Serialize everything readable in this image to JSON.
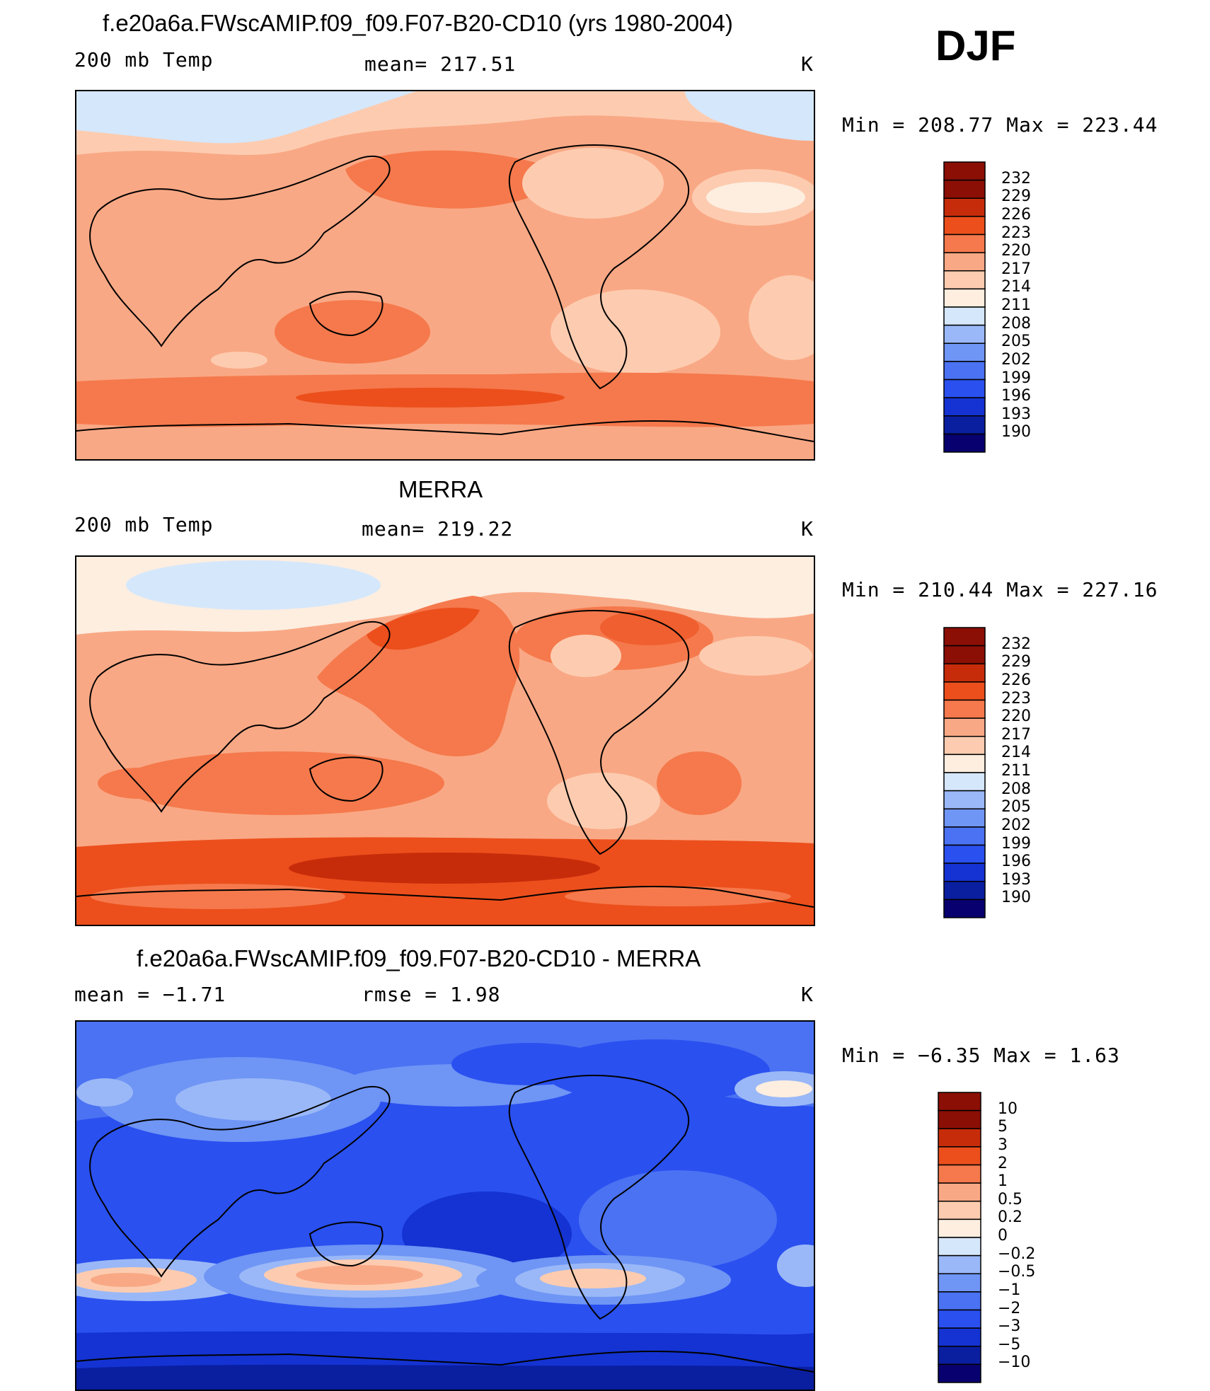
{
  "season": "DJF",
  "colors": {
    "abs_scale": [
      "#08006e",
      "#0a1ea0",
      "#1433d2",
      "#2a50f0",
      "#4a72f2",
      "#6f95f5",
      "#9ab8f7",
      "#d5e7fb",
      "#fdeee0",
      "#fdccb0",
      "#f9a885",
      "#f5794c",
      "#ec4f1c",
      "#c72c0a",
      "#8b0f05"
    ],
    "diff_scale": [
      "#08006e",
      "#0a1ea0",
      "#1433d2",
      "#2a50f0",
      "#4a72f2",
      "#6f95f5",
      "#9ab8f7",
      "#d5e7fb",
      "#fdeee0",
      "#fdccb0",
      "#f9a885",
      "#f5794c",
      "#ec4f1c",
      "#c72c0a",
      "#8b0f05"
    ]
  },
  "panels": [
    {
      "title": "f.e20a6a.FWscAMIP.f09_f09.F07-B20-CD10 (yrs 1980-2004)",
      "left_label": "200 mb Temp",
      "center_label": "mean= 217.51",
      "units": "K",
      "minmax": "Min  =  208.77  Max  =  223.44"
    },
    {
      "title": "MERRA",
      "left_label": "200 mb Temp",
      "center_label": "mean= 219.22",
      "units": "K",
      "minmax": "Min  =  210.44  Max  =  227.16"
    },
    {
      "title": "f.e20a6a.FWscAMIP.f09_f09.F07-B20-CD10 - MERRA",
      "left_label": "mean  =   −1.71",
      "center_label": "rmse  =    1.98",
      "units": "K",
      "minmax": "Min  =   −6.35  Max  =     1.63"
    }
  ],
  "chart_data": [
    {
      "type": "heatmap",
      "title": "f.e20a6a.FWscAMIP.f09_f09.F07-B20-CD10 (yrs 1980-2004)",
      "variable": "200 mb Temp",
      "units": "K",
      "mean": 217.51,
      "min": 208.77,
      "max": 223.44,
      "colorbar_levels": [
        "232",
        "229",
        "226",
        "223",
        "220",
        "217",
        "214",
        "211",
        "208",
        "205",
        "202",
        "199",
        "196",
        "193",
        "190"
      ]
    },
    {
      "type": "heatmap",
      "title": "MERRA",
      "variable": "200 mb Temp",
      "units": "K",
      "mean": 219.22,
      "min": 210.44,
      "max": 227.16,
      "colorbar_levels": [
        "232",
        "229",
        "226",
        "223",
        "220",
        "217",
        "214",
        "211",
        "208",
        "205",
        "202",
        "199",
        "196",
        "193",
        "190"
      ]
    },
    {
      "type": "heatmap",
      "title": "f.e20a6a.FWscAMIP.f09_f09.F07-B20-CD10 - MERRA",
      "units": "K",
      "mean": -1.71,
      "rmse": 1.98,
      "min": -6.35,
      "max": 1.63,
      "colorbar_levels": [
        "10",
        "5",
        "3",
        "2",
        "1",
        "0.5",
        "0.2",
        "0",
        "−0.2",
        "−0.5",
        "−1",
        "−2",
        "−3",
        "−5",
        "−10"
      ]
    }
  ]
}
